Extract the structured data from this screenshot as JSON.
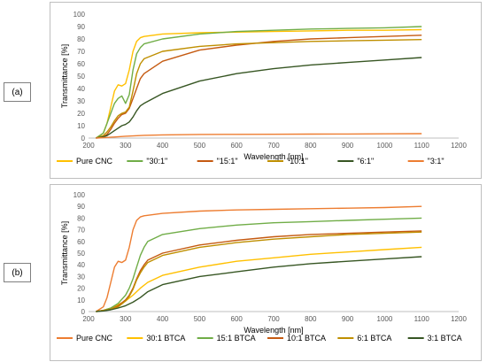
{
  "panels": [
    {
      "label": "(a)"
    },
    {
      "label": "(b)"
    }
  ],
  "chart_data": [
    {
      "type": "line",
      "xlabel": "Wavelength [nm]",
      "ylabel": "Transmittance [%]",
      "xlim": [
        200,
        1200
      ],
      "ylim": [
        0,
        100
      ],
      "xticks": [
        200,
        300,
        400,
        500,
        600,
        700,
        800,
        900,
        1000,
        1100,
        1200
      ],
      "yticks": [
        0,
        10,
        20,
        30,
        40,
        50,
        60,
        70,
        80,
        90,
        100
      ],
      "grid": false,
      "legend_position": "bottom",
      "series": [
        {
          "name": "Pure CNC",
          "color": "#ffc000",
          "x": [
            220,
            240,
            250,
            260,
            270,
            280,
            290,
            300,
            310,
            320,
            330,
            340,
            350,
            400,
            500,
            600,
            700,
            800,
            900,
            1000,
            1100
          ],
          "y": [
            0,
            4,
            12,
            25,
            38,
            43,
            42,
            44,
            55,
            70,
            78,
            81,
            82,
            84,
            85,
            85.5,
            86,
            86.5,
            87,
            87,
            87.5
          ]
        },
        {
          "name": "\"30:1\"",
          "color": "#70ad47",
          "x": [
            220,
            240,
            250,
            260,
            270,
            280,
            290,
            300,
            310,
            320,
            330,
            340,
            350,
            400,
            500,
            600,
            700,
            800,
            900,
            1000,
            1100
          ],
          "y": [
            0,
            4,
            12,
            20,
            28,
            32,
            34,
            28,
            35,
            55,
            68,
            73,
            76,
            80,
            84,
            86,
            87,
            88,
            88.5,
            89,
            90
          ]
        },
        {
          "name": "\"15:1\"",
          "color": "#c55a11",
          "x": [
            220,
            240,
            250,
            260,
            270,
            280,
            290,
            300,
            310,
            320,
            330,
            340,
            350,
            400,
            500,
            600,
            700,
            800,
            900,
            1000,
            1100
          ],
          "y": [
            0,
            1,
            3,
            7,
            12,
            16,
            19,
            20,
            24,
            32,
            40,
            48,
            52,
            62,
            71,
            75,
            78,
            80,
            81,
            82,
            83
          ]
        },
        {
          "name": "\"10:1\"",
          "color": "#bf8f00",
          "x": [
            220,
            240,
            250,
            260,
            270,
            280,
            290,
            300,
            310,
            320,
            330,
            340,
            350,
            400,
            500,
            600,
            700,
            800,
            900,
            1000,
            1100
          ],
          "y": [
            0,
            2,
            5,
            9,
            14,
            18,
            20,
            21,
            25,
            38,
            52,
            60,
            64,
            70,
            74,
            76,
            77,
            78,
            78.5,
            79,
            79.5
          ]
        },
        {
          "name": "\"6:1\"",
          "color": "#375623",
          "x": [
            220,
            240,
            250,
            260,
            270,
            280,
            290,
            300,
            310,
            320,
            330,
            340,
            350,
            400,
            500,
            600,
            700,
            800,
            900,
            1000,
            1100
          ],
          "y": [
            0,
            1,
            2,
            4,
            6,
            8,
            10,
            11,
            13,
            17,
            22,
            26,
            28,
            36,
            46,
            52,
            56,
            59,
            61,
            63,
            65
          ]
        },
        {
          "name": "\"3:1\"",
          "color": "#ed7d31",
          "x": [
            220,
            250,
            300,
            350,
            400,
            500,
            600,
            700,
            800,
            900,
            1000,
            1100
          ],
          "y": [
            0,
            0.5,
            1.5,
            2.2,
            2.6,
            2.9,
            3.0,
            3.1,
            3.2,
            3.3,
            3.4,
            3.6
          ]
        }
      ]
    },
    {
      "type": "line",
      "xlabel": "Wavelength [nm]",
      "ylabel": "Transmittance [%]",
      "xlim": [
        200,
        1200
      ],
      "ylim": [
        0,
        100
      ],
      "xticks": [
        200,
        300,
        400,
        500,
        600,
        700,
        800,
        900,
        1000,
        1100,
        1200
      ],
      "yticks": [
        0,
        10,
        20,
        30,
        40,
        50,
        60,
        70,
        80,
        90,
        100
      ],
      "grid": false,
      "legend_position": "bottom",
      "series": [
        {
          "name": "Pure CNC",
          "color": "#ed7d31",
          "x": [
            220,
            240,
            250,
            260,
            270,
            280,
            290,
            300,
            310,
            320,
            330,
            340,
            350,
            400,
            500,
            600,
            700,
            800,
            900,
            1000,
            1100
          ],
          "y": [
            0,
            4,
            12,
            25,
            38,
            43,
            42,
            44,
            55,
            70,
            78,
            81,
            82,
            84,
            86,
            87,
            87.5,
            88,
            88.5,
            89,
            90
          ]
        },
        {
          "name": "30:1 BTCA",
          "color": "#ffc000",
          "x": [
            220,
            240,
            260,
            280,
            300,
            320,
            340,
            360,
            400,
            500,
            600,
            700,
            800,
            900,
            1000,
            1100
          ],
          "y": [
            0,
            1,
            3,
            6,
            9,
            14,
            20,
            25,
            31,
            38,
            43,
            46,
            49,
            51,
            53,
            55
          ]
        },
        {
          "name": "15:1 BTCA",
          "color": "#70ad47",
          "x": [
            220,
            240,
            260,
            280,
            300,
            310,
            320,
            330,
            340,
            350,
            360,
            400,
            500,
            600,
            700,
            800,
            900,
            1000,
            1100
          ],
          "y": [
            0,
            1,
            3,
            7,
            14,
            20,
            28,
            38,
            48,
            55,
            60,
            66,
            71,
            74,
            76,
            77,
            78,
            79,
            80
          ]
        },
        {
          "name": "10:1 BTCA",
          "color": "#c55a11",
          "x": [
            220,
            240,
            260,
            280,
            300,
            310,
            320,
            330,
            340,
            350,
            360,
            400,
            500,
            600,
            700,
            800,
            900,
            1000,
            1100
          ],
          "y": [
            0,
            1,
            2,
            5,
            10,
            14,
            20,
            28,
            35,
            40,
            44,
            50,
            57,
            61,
            64,
            66,
            67,
            68,
            69
          ]
        },
        {
          "name": "6:1 BTCA",
          "color": "#bf8f00",
          "x": [
            220,
            240,
            260,
            280,
            300,
            310,
            320,
            330,
            340,
            350,
            360,
            400,
            500,
            600,
            700,
            800,
            900,
            1000,
            1100
          ],
          "y": [
            0,
            1,
            2,
            4,
            9,
            13,
            19,
            27,
            33,
            38,
            42,
            48,
            55,
            59,
            62,
            64,
            66,
            67,
            68
          ]
        },
        {
          "name": "3:1 BTCA",
          "color": "#375623",
          "x": [
            220,
            240,
            260,
            280,
            300,
            320,
            340,
            360,
            400,
            500,
            600,
            700,
            800,
            900,
            1000,
            1100
          ],
          "y": [
            0,
            0.5,
            1.5,
            3,
            5,
            8,
            12,
            17,
            23,
            30,
            34,
            38,
            41,
            43,
            45,
            47
          ]
        }
      ]
    }
  ]
}
